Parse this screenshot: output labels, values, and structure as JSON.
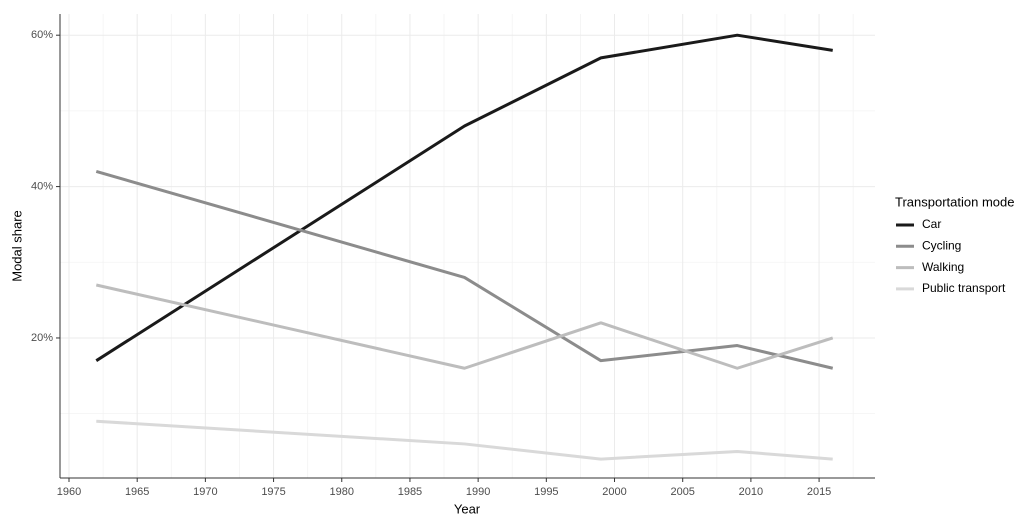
{
  "chart_data": {
    "type": "line",
    "x_label": "Year",
    "y_label": "Modal share",
    "legend_title": "Transportation mode",
    "legend": "right",
    "grid": true,
    "x": [
      1962,
      1989,
      1999,
      2009,
      2016
    ],
    "series": [
      {
        "name": "Car",
        "color": "#1a1a1a",
        "values": [
          17,
          48,
          57,
          60,
          58
        ]
      },
      {
        "name": "Cycling",
        "color": "#8c8c8c",
        "values": [
          42,
          28,
          17,
          19,
          16
        ]
      },
      {
        "name": "Walking",
        "color": "#bdbdbd",
        "values": [
          27,
          16,
          22,
          16,
          20
        ]
      },
      {
        "name": "Public transport",
        "color": "#d9d9d9",
        "values": [
          9,
          6,
          4,
          5,
          4
        ]
      }
    ],
    "xlim": [
      1959.34,
      2019.1
    ],
    "xticks": [
      1960,
      1965,
      1970,
      1975,
      1980,
      1985,
      1990,
      1995,
      2000,
      2005,
      2010,
      2015
    ],
    "ylim": [
      1.5,
      62.8
    ],
    "yticks": [
      {
        "value": 20,
        "label": "20%"
      },
      {
        "value": 40,
        "label": "40%"
      },
      {
        "value": 60,
        "label": "60%"
      }
    ]
  }
}
